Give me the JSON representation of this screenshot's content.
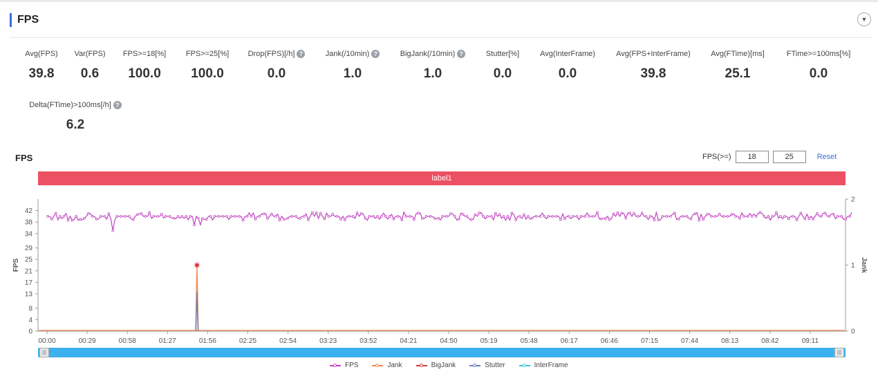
{
  "header": {
    "title": "FPS",
    "collapse_icon": "chevron-down-icon"
  },
  "metrics": [
    {
      "label": "Avg(FPS)",
      "value": "39.8",
      "help": false
    },
    {
      "label": "Var(FPS)",
      "value": "0.6",
      "help": false
    },
    {
      "label": "FPS>=18[%]",
      "value": "100.0",
      "help": false
    },
    {
      "label": "FPS>=25[%]",
      "value": "100.0",
      "help": false
    },
    {
      "label": "Drop(FPS)[/h]",
      "value": "0.0",
      "help": true
    },
    {
      "label": "Jank(/10min)",
      "value": "1.0",
      "help": true
    },
    {
      "label": "BigJank(/10min)",
      "value": "1.0",
      "help": true
    },
    {
      "label": "Stutter[%]",
      "value": "0.0",
      "help": false
    },
    {
      "label": "Avg(InterFrame)",
      "value": "0.0",
      "help": false
    },
    {
      "label": "Avg(FPS+InterFrame)",
      "value": "39.8",
      "help": false
    },
    {
      "label": "Avg(FTime)[ms]",
      "value": "25.1",
      "help": false
    },
    {
      "label": "FTime>=100ms[%]",
      "value": "0.0",
      "help": false
    },
    {
      "label": "Delta(FTime)>100ms[/h]",
      "value": "6.2",
      "help": true
    }
  ],
  "chart_controls": {
    "title": "FPS",
    "threshold_label": "FPS(>=)",
    "threshold_low": "18",
    "threshold_high": "25",
    "reset_label": "Reset"
  },
  "label_bar": {
    "text": "label1",
    "color": "#ec5063"
  },
  "chart_data": {
    "type": "line",
    "ylabel_left": "FPS",
    "ylabel_right": "Jank",
    "y_ticks_left": [
      "0",
      "4",
      "8",
      "13",
      "17",
      "21",
      "25",
      "29",
      "34",
      "38",
      "42"
    ],
    "y_ticks_right": [
      "0",
      "1",
      "2"
    ],
    "ylim_left": [
      0,
      46
    ],
    "ylim_right": [
      0,
      2
    ],
    "x_ticks": [
      "00:00",
      "00:29",
      "00:58",
      "01:27",
      "01:56",
      "02:25",
      "02:54",
      "03:23",
      "03:52",
      "04:21",
      "04:50",
      "05:19",
      "05:48",
      "06:17",
      "06:46",
      "07:15",
      "07:44",
      "08:13",
      "08:42",
      "09:11"
    ],
    "x_range_seconds": [
      0,
      593
    ],
    "series": [
      {
        "name": "FPS",
        "color": "#c041c0",
        "base": 40,
        "dips": [
          {
            "t": 48,
            "v": 35
          },
          {
            "t": 108,
            "v": 37
          },
          {
            "t": 112,
            "v": 37
          },
          {
            "t": 262,
            "v": 41.5
          }
        ]
      },
      {
        "name": "Jank",
        "color": "#f0884a",
        "spike": {
          "t": 110,
          "v": 1
        }
      },
      {
        "name": "BigJank",
        "color": "#d13a3a",
        "spike": {
          "t": 110,
          "v": 1
        }
      },
      {
        "name": "Stutter",
        "color": "#6a7fb8",
        "spike": {
          "t": 110,
          "v": 0.6
        }
      },
      {
        "name": "InterFrame",
        "color": "#33c8dc"
      }
    ],
    "grid": false,
    "legend_position": "bottom"
  },
  "legend": [
    {
      "name": "FPS",
      "color": "#c041c0"
    },
    {
      "name": "Jank",
      "color": "#f0884a"
    },
    {
      "name": "BigJank",
      "color": "#d13a3a"
    },
    {
      "name": "Stutter",
      "color": "#6a7fb8"
    },
    {
      "name": "InterFrame",
      "color": "#33c8dc"
    }
  ],
  "slider": {
    "start": 0,
    "end": 100,
    "handle_icon": "grip-icon"
  }
}
